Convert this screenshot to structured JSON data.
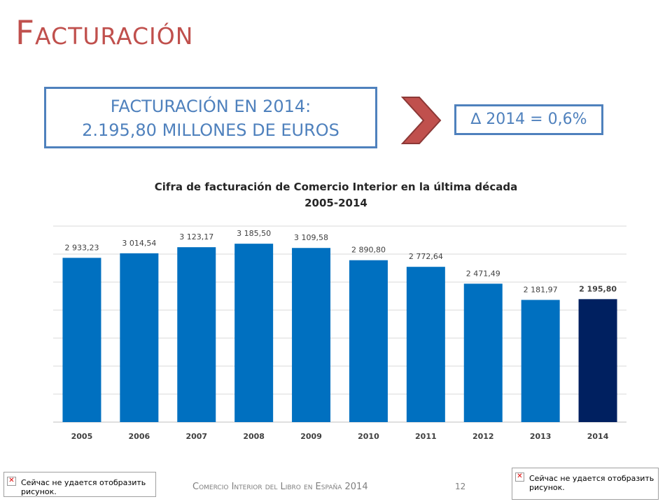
{
  "slide": {
    "title": "Facturación",
    "summary_line1": "FACTURACIÓN EN 2014:",
    "summary_line2": "2.195,80 MILLONES DE EUROS",
    "delta": "∆ 2014 = 0,6%",
    "footer": "Comercio Interior del Libro en España 2014",
    "page_number": "12",
    "broken_image_text": "Сейчас не удается отобразить рисунок."
  },
  "colors": {
    "title": "#c0504d",
    "box_border": "#4f81bd",
    "bar": "#0070c0",
    "bar_highlight": "#002060",
    "arrow": "#c0504d",
    "grid": "#d9d9d9"
  },
  "icons": {
    "arrow": "chevron-right-icon",
    "broken_image": "close-icon"
  },
  "chart_data": {
    "type": "bar",
    "title_line1": "Cifra de facturación de Comercio Interior en la última década",
    "title_line2": "2005-2014",
    "categories": [
      "2005",
      "2006",
      "2007",
      "2008",
      "2009",
      "2010",
      "2011",
      "2012",
      "2013",
      "2014"
    ],
    "values": [
      2933.23,
      3014.54,
      3123.17,
      3185.5,
      3109.58,
      2890.8,
      2772.64,
      2471.49,
      2181.97,
      2195.8
    ],
    "value_labels": [
      "2 933,23",
      "3 014,54",
      "3 123,17",
      "3 185,50",
      "3 109,58",
      "2 890,80",
      "2 772,64",
      "2 471,49",
      "2 181,97",
      "2 195,80"
    ],
    "highlight_index": 9,
    "ylim": [
      0,
      3500
    ],
    "grid": true,
    "y_axis_labels": false,
    "xlabel": "",
    "ylabel": ""
  }
}
